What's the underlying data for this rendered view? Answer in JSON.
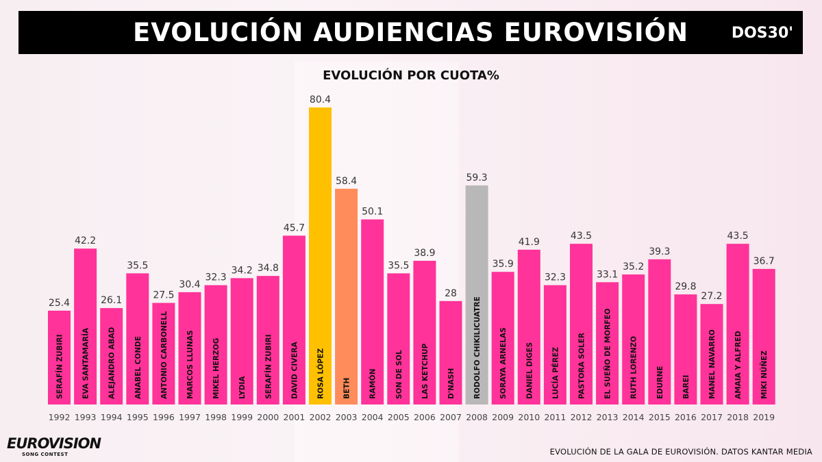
{
  "header": {
    "title": "EVOLUCIÓN AUDIENCIAS EUROVISIÓN",
    "brand": "DOS30'"
  },
  "footer": {
    "note": "EVOLUCIÓN DE LA GALA DE EUROVISIÓN. DATOS KANTAR MEDIA",
    "logo_main": "EUROVISION",
    "logo_sub": "SONG CONTEST"
  },
  "colors": {
    "default": "#ff3399",
    "highlight_2002": "#ffc000",
    "highlight_2003": "#ff8c5a",
    "highlight_2008": "#b8b8b8"
  },
  "chart_data": {
    "type": "bar",
    "title": "EVOLUCIÓN POR CUOTA%",
    "ylim": [
      0,
      80.4
    ],
    "grid": false,
    "legend": "none",
    "categories": [
      "1992",
      "1993",
      "1994",
      "1995",
      "1996",
      "1997",
      "1998",
      "1999",
      "2000",
      "2001",
      "2002",
      "2003",
      "2004",
      "2005",
      "2006",
      "2007",
      "2008",
      "2009",
      "2010",
      "2011",
      "2012",
      "2013",
      "2014",
      "2015",
      "2016",
      "2017",
      "2018",
      "2019"
    ],
    "values": [
      25.4,
      42.2,
      26.1,
      35.5,
      27.5,
      30.4,
      32.3,
      34.2,
      34.8,
      45.7,
      80.4,
      58.4,
      50.1,
      35.5,
      38.9,
      28,
      59.3,
      35.9,
      41.9,
      32.3,
      43.5,
      33.1,
      35.2,
      39.3,
      29.8,
      27.2,
      43.5,
      36.7
    ],
    "value_labels": [
      "25.4",
      "42.2",
      "26.1",
      "35.5",
      "27.5",
      "30.4",
      "32.3",
      "34.2",
      "34.8",
      "45.7",
      "80.4",
      "58.4",
      "50.1",
      "35.5",
      "38.9",
      "28",
      "59.3",
      "35.9",
      "41.9",
      "32.3",
      "43.5",
      "33.1",
      "35.2",
      "39.3",
      "29.8",
      "27.2",
      "43.5",
      "36.7"
    ],
    "bar_labels": [
      "SERAFÍN ZUBIRI",
      "EVA SANTAMARÍA",
      "ALEJANDRO ABAD",
      "ANABEL CONDE",
      "ANTONIO CARBONELL",
      "MARCOS LLUNAS",
      "MIKEL HERZOG",
      "LYDIA",
      "SERAFÍN ZUBIRI",
      "DAVID CIVERA",
      "ROSA LÓPEZ",
      "BETH",
      "RAMÓN",
      "SON DE SOL",
      "LAS KETCHUP",
      "D'NASH",
      "RODOLFO CHIKILICUATRE",
      "SORAYA ARNELAS",
      "DANIEL DIGES",
      "LUCÍA PÉREZ",
      "PASTORA SOLER",
      "EL SUEÑO DE MORFEO",
      "RUTH LORENZO",
      "EDURNE",
      "BAREI",
      "MANEL NAVARRO",
      "AMAIA Y ALFRED",
      "MIKI NÚÑEZ"
    ],
    "bar_colors": [
      "#ff3399",
      "#ff3399",
      "#ff3399",
      "#ff3399",
      "#ff3399",
      "#ff3399",
      "#ff3399",
      "#ff3399",
      "#ff3399",
      "#ff3399",
      "#ffc000",
      "#ff8c5a",
      "#ff3399",
      "#ff3399",
      "#ff3399",
      "#ff3399",
      "#b8b8b8",
      "#ff3399",
      "#ff3399",
      "#ff3399",
      "#ff3399",
      "#ff3399",
      "#ff3399",
      "#ff3399",
      "#ff3399",
      "#ff3399",
      "#ff3399",
      "#ff3399"
    ]
  }
}
